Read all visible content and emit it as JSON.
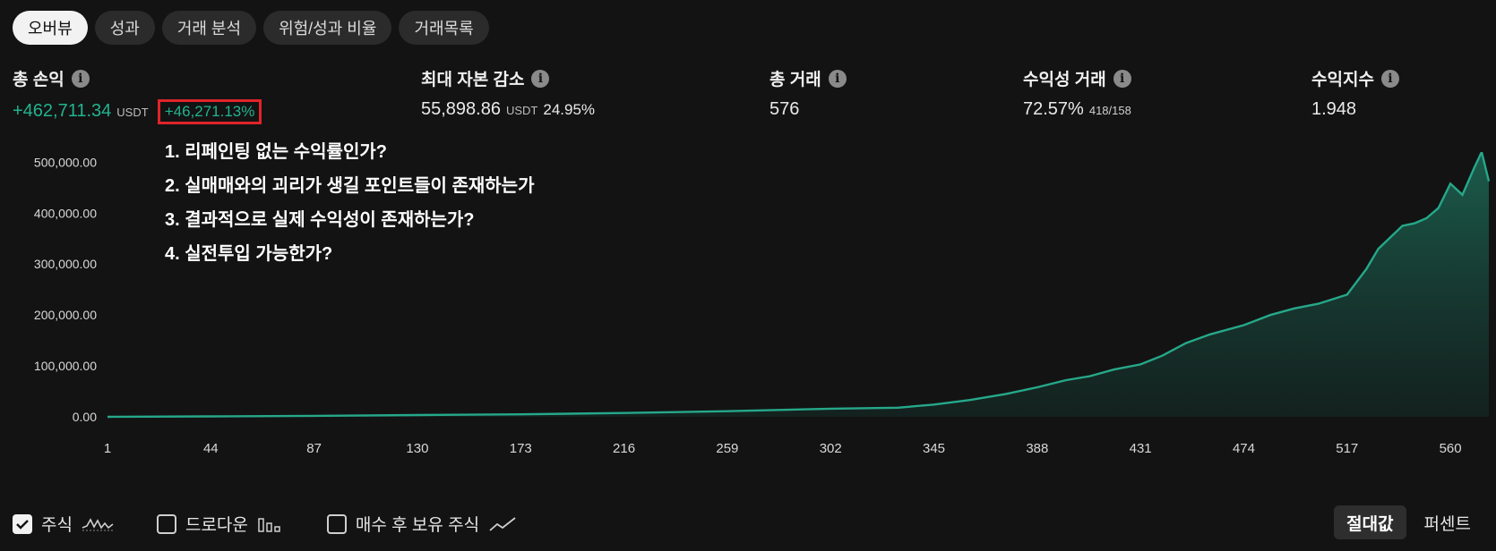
{
  "tabs": [
    "오버뷰",
    "성과",
    "거래 분석",
    "위험/성과 비율",
    "거래목록"
  ],
  "stats": {
    "total_pnl": {
      "label": "총 손익",
      "value": "+462,711.34",
      "unit": "USDT",
      "percent": "+46,271.13%"
    },
    "max_drawdown": {
      "label": "최대 자본 감소",
      "value": "55,898.86",
      "unit": "USDT",
      "percent": "24.95%"
    },
    "total_trades": {
      "label": "총 거래",
      "value": "576"
    },
    "profitable": {
      "label": "수익성 거래",
      "value": "72.57%",
      "ratio": "418/158"
    },
    "profit_factor": {
      "label": "수익지수",
      "value": "1.948"
    }
  },
  "notes": [
    "1. 리페인팅 없는 수익률인가?",
    "2. 실매매와의 괴리가 생길 포인트들이 존재하는가",
    "3. 결과적으로 실제 수익성이 존재하는가?",
    "4. 실전투입 가능한가?"
  ],
  "chart_data": {
    "type": "area",
    "y_ticks": [
      "0.00",
      "100,000.00",
      "200,000.00",
      "300,000.00",
      "400,000.00",
      "500,000.00"
    ],
    "x_ticks": [
      "1",
      "44",
      "87",
      "130",
      "173",
      "216",
      "259",
      "302",
      "345",
      "388",
      "431",
      "474",
      "517",
      "560"
    ],
    "ylim": [
      0,
      520000
    ],
    "xlim": [
      1,
      576
    ],
    "x": [
      1,
      44,
      87,
      130,
      173,
      216,
      259,
      302,
      330,
      345,
      360,
      375,
      388,
      400,
      410,
      420,
      431,
      440,
      450,
      460,
      474,
      485,
      495,
      505,
      517,
      525,
      530,
      540,
      545,
      550,
      555,
      560,
      565,
      570,
      573,
      576
    ],
    "values": [
      0,
      900,
      2000,
      3500,
      5000,
      7500,
      11000,
      16000,
      18000,
      24000,
      33000,
      45000,
      58000,
      72000,
      80000,
      93000,
      103000,
      120000,
      145000,
      162000,
      180000,
      200000,
      213000,
      222000,
      240000,
      290000,
      330000,
      375000,
      380000,
      390000,
      410000,
      458000,
      436000,
      490000,
      520000,
      462711
    ],
    "line_color": "#26a88a",
    "grid": false
  },
  "legend": [
    {
      "label": "주식",
      "checked": true,
      "icon": "equity-wave-icon"
    },
    {
      "label": "드로다운",
      "checked": false,
      "icon": "bar-chart-icon"
    },
    {
      "label": "매수 후 보유 주식",
      "checked": false,
      "icon": "line-chart-icon"
    }
  ],
  "toggle": {
    "absolute": "절대값",
    "percent": "퍼센트"
  }
}
